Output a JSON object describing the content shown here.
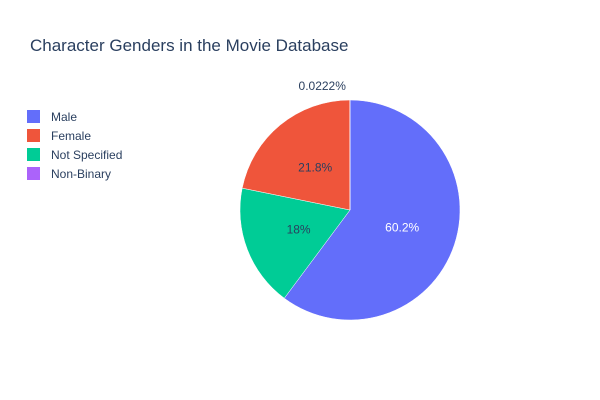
{
  "chart_data": {
    "type": "pie",
    "title": "Character Genders in the Movie Database",
    "slices": [
      {
        "label": "Male",
        "value": 60.2,
        "display": "60.2%",
        "color": "#636efa",
        "text_color": "#ffffff"
      },
      {
        "label": "Not Specified",
        "value": 18.0,
        "display": "18%",
        "color": "#00cc96",
        "text_color": "#2a3f5f"
      },
      {
        "label": "Female",
        "value": 21.8,
        "display": "21.8%",
        "color": "#ef553b",
        "text_color": "#2a3f5f"
      },
      {
        "label": "Non-Binary",
        "value": 0.0222,
        "display": "0.0222%",
        "color": "#ab63fa",
        "text_color": "#2a3f5f"
      }
    ],
    "legend": {
      "placement": "top-left",
      "entries": [
        {
          "label": "Male",
          "color": "#636efa"
        },
        {
          "label": "Female",
          "color": "#ef553b"
        },
        {
          "label": "Not Specified",
          "color": "#00cc96"
        },
        {
          "label": "Non-Binary",
          "color": "#ab63fa"
        }
      ]
    }
  }
}
